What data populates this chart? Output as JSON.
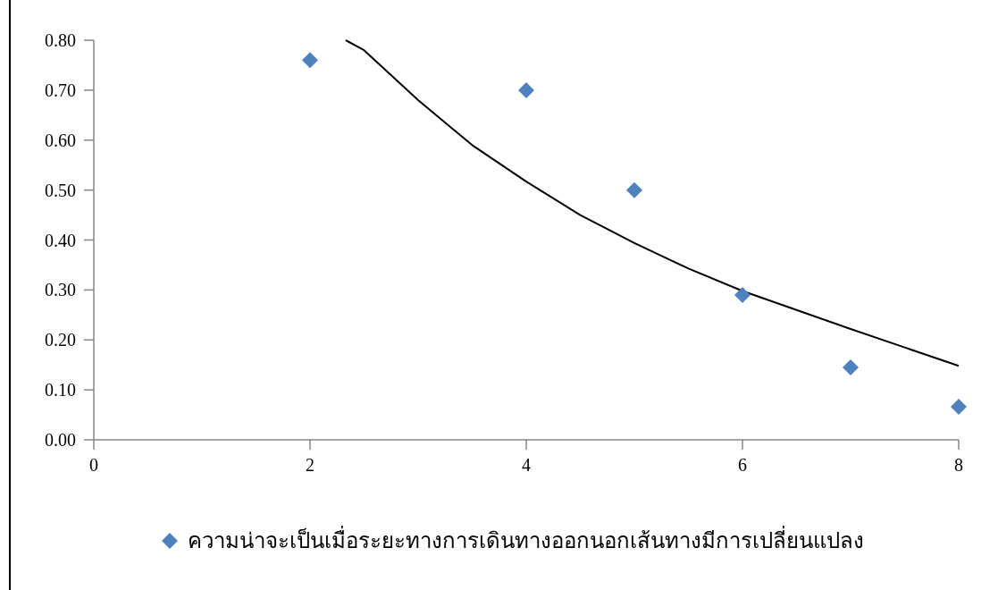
{
  "chart_data": {
    "type": "scatter",
    "xlim": [
      0,
      8
    ],
    "ylim": [
      0,
      0.8
    ],
    "xticks": [
      0,
      2,
      4,
      6,
      8
    ],
    "yticks": [
      {
        "value": 0,
        "label": "0.00"
      },
      {
        "value": 0.1,
        "label": "0.10"
      },
      {
        "value": 0.2,
        "label": "0.20"
      },
      {
        "value": 0.3,
        "label": "0.30"
      },
      {
        "value": 0.4,
        "label": "0.40"
      },
      {
        "value": 0.5,
        "label": "0.50"
      },
      {
        "value": 0.6,
        "label": "0.60"
      },
      {
        "value": 0.7,
        "label": "0.70"
      },
      {
        "value": 0.8,
        "label": "0.80"
      }
    ],
    "grid": false,
    "legend": "bottom",
    "marker": "diamond",
    "series": [
      {
        "name": "ความน่าจะเป็นเมื่อระยะทางการเดินทางออกนอกเส้นทางมีการเปลี่ยนแปลง",
        "color": "#4f81bd",
        "x": [
          2,
          4,
          5,
          6,
          7,
          8
        ],
        "values": [
          0.76,
          0.7,
          0.5,
          0.29,
          0.145,
          0.066
        ]
      },
      {
        "type": "line",
        "color": "#000000",
        "marker": "none",
        "line_style": "solid",
        "x": [
          2.33,
          2.5,
          3,
          3.5,
          4,
          4.5,
          5,
          5.5,
          6,
          6.5,
          7,
          7.5,
          8
        ],
        "values": [
          0.8,
          0.78,
          0.68,
          0.59,
          0.517,
          0.45,
          0.394,
          0.343,
          0.298,
          0.26,
          0.222,
          0.185,
          0.148
        ]
      }
    ]
  }
}
